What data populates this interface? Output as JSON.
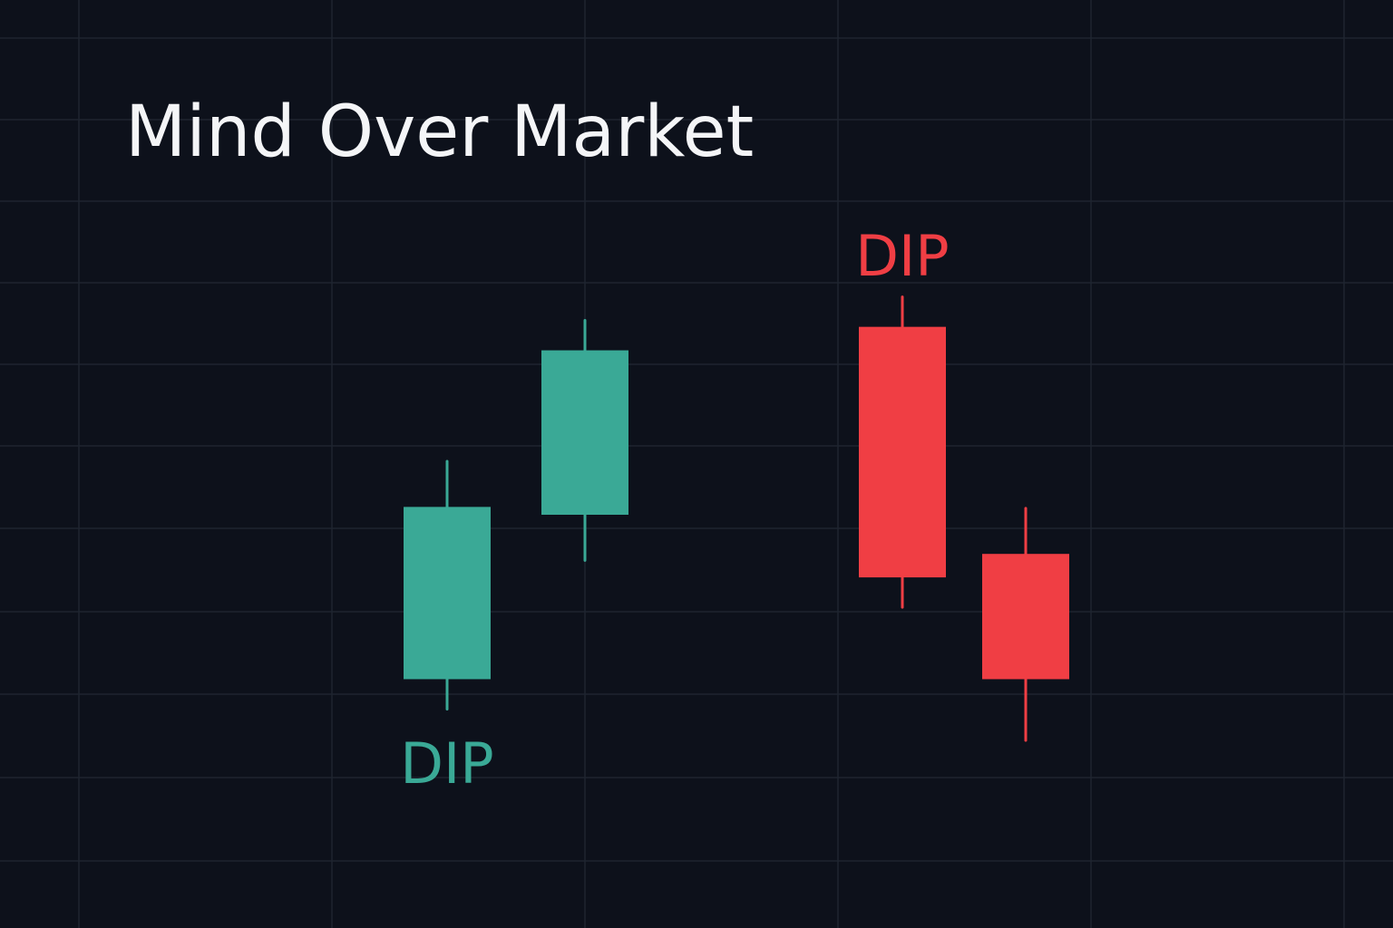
{
  "title": "Mind Over Market",
  "colors": {
    "background": "#0d111b",
    "grid": "#1e2430",
    "up": "#3aa996",
    "down": "#f03e44",
    "title": "#f4f5f7"
  },
  "chart_data": {
    "type": "candlestick",
    "title": "Mind Over Market",
    "grid": true,
    "ylim": [
      0,
      100
    ],
    "candles": [
      {
        "index": 1,
        "direction": "up",
        "open": 29,
        "close": 51,
        "high": 57,
        "low": 25
      },
      {
        "index": 2,
        "direction": "up",
        "open": 50,
        "close": 71,
        "high": 75,
        "low": 44
      },
      {
        "index": 3,
        "direction": "down",
        "open": 74,
        "close": 42,
        "high": 78,
        "low": 38
      },
      {
        "index": 4,
        "direction": "down",
        "open": 45,
        "close": 29,
        "high": 51,
        "low": 21
      }
    ],
    "annotations": [
      {
        "text": "DIP",
        "candle": 1,
        "position": "below",
        "color": "#3aa996"
      },
      {
        "text": "DIP",
        "candle": 3,
        "position": "above",
        "color": "#f03e44"
      }
    ]
  }
}
